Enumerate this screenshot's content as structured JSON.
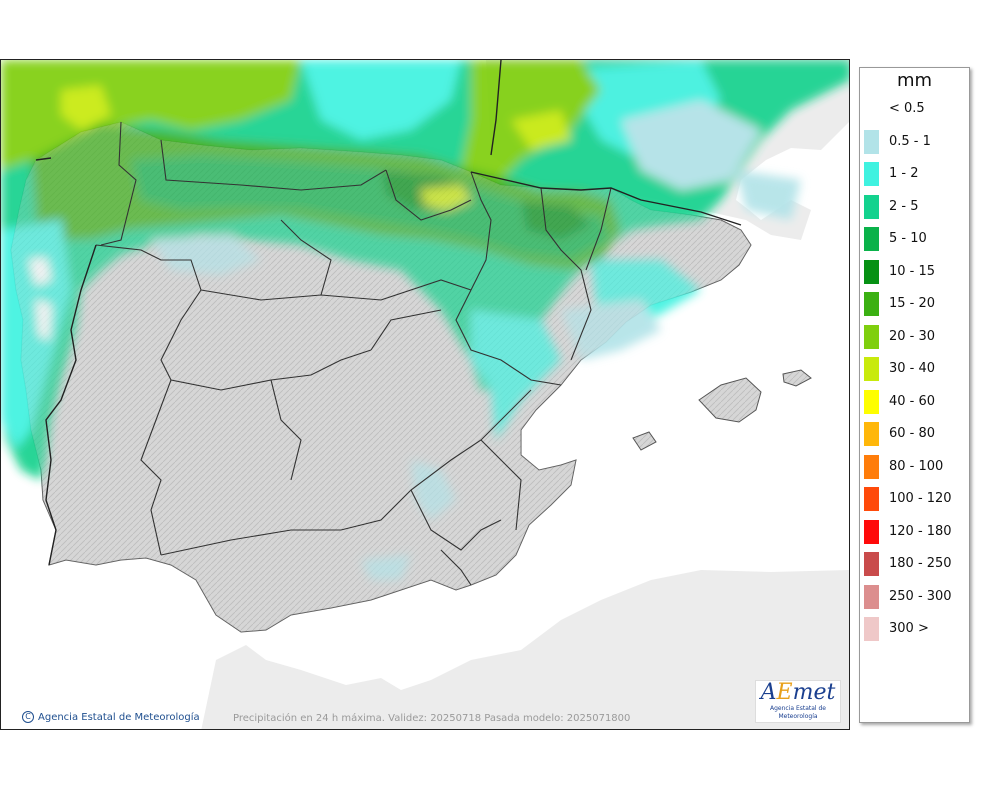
{
  "legend": {
    "title": "mm",
    "items": [
      {
        "label": "< 0.5",
        "color": "#ffffff"
      },
      {
        "label": "0.5 - 1",
        "color": "#b2e3e8"
      },
      {
        "label": "1 - 2",
        "color": "#3ff2e0"
      },
      {
        "label": "2 - 5",
        "color": "#13d28e"
      },
      {
        "label": "5 - 10",
        "color": "#0ab24a"
      },
      {
        "label": "10 - 15",
        "color": "#069114"
      },
      {
        "label": "15 - 20",
        "color": "#3bb012"
      },
      {
        "label": "20 - 30",
        "color": "#7fcf0e"
      },
      {
        "label": "30 - 40",
        "color": "#c8ea0c"
      },
      {
        "label": "40 - 60",
        "color": "#fefe00"
      },
      {
        "label": "60 - 80",
        "color": "#ffb70a"
      },
      {
        "label": "80 - 100",
        "color": "#ff7d0a"
      },
      {
        "label": "100 - 120",
        "color": "#ff4a0a"
      },
      {
        "label": "120 - 180",
        "color": "#ff0a0a"
      },
      {
        "label": "180 - 250",
        "color": "#c94b4b"
      },
      {
        "label": "250 - 300",
        "color": "#dc8e8e"
      },
      {
        "label": "300 >",
        "color": "#efc8c8"
      }
    ]
  },
  "credit": {
    "copyright_symbol": "C",
    "text": "Agencia Estatal de Meteorología"
  },
  "caption": "Precipitación en 24 h máxima. Validez: 20250718 Pasada modelo: 2025071800",
  "logo": {
    "word_a": "A",
    "word_e": "E",
    "word_rest": "met",
    "subtitle": "Agencia Estatal de Meteorología"
  },
  "map": {
    "sea_color": "#ffffff",
    "land_color": "#d9d9d9",
    "foreign_land_color": "#ececec",
    "border_color": "#333333"
  }
}
